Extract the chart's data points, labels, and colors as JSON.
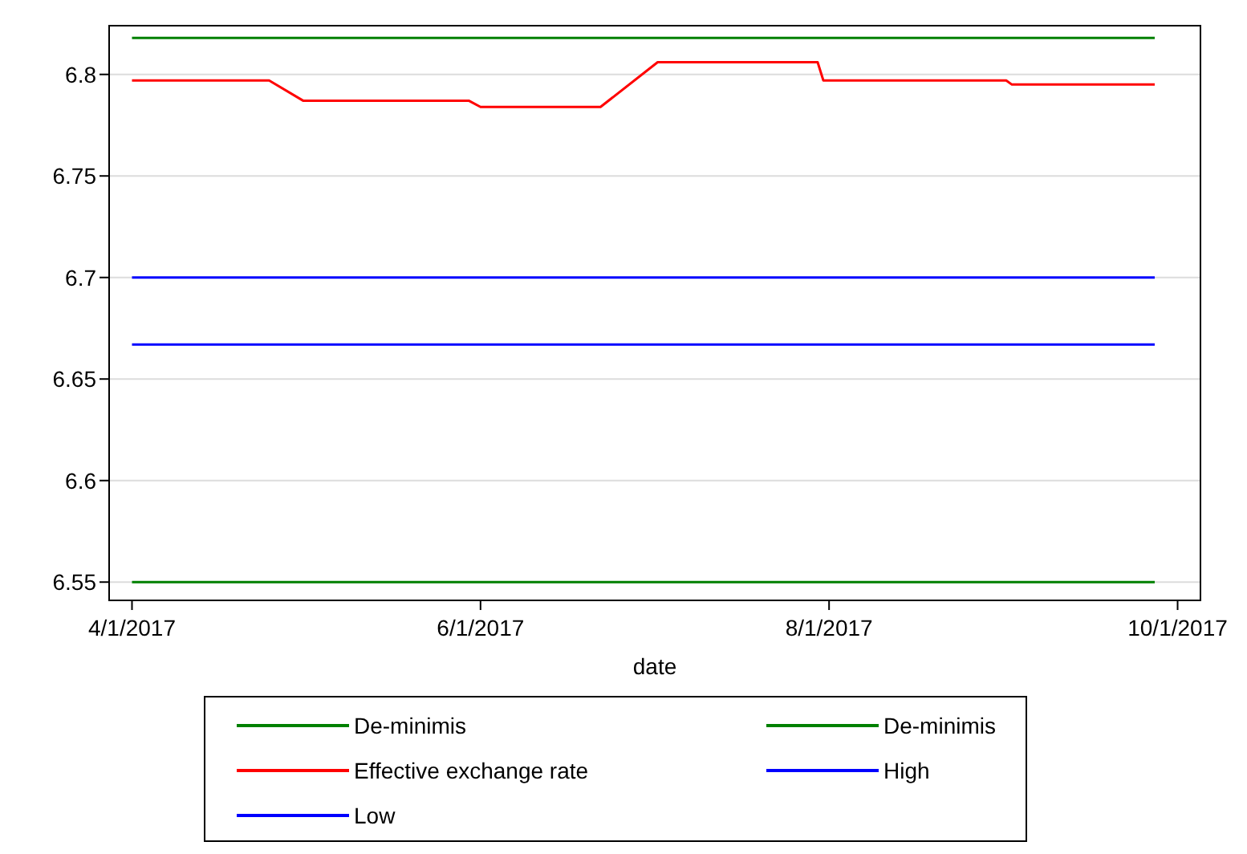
{
  "chart_data": {
    "type": "line",
    "xlabel": "date",
    "x": [
      "2017-04-01",
      "2017-09-27"
    ],
    "xlim": [
      "2017-03-28",
      "2017-10-05"
    ],
    "xticks": [
      {
        "value": "2017-04-01",
        "label": "4/1/2017"
      },
      {
        "value": "2017-06-01",
        "label": "6/1/2017"
      },
      {
        "value": "2017-08-01",
        "label": "8/1/2017"
      },
      {
        "value": "2017-10-01",
        "label": "10/1/2017"
      }
    ],
    "ylim": [
      6.541,
      6.824
    ],
    "yticks": [
      6.55,
      6.6,
      6.65,
      6.7,
      6.75,
      6.8
    ],
    "grid": "y",
    "legend": "bottom",
    "line_style": "solid",
    "marker": "none",
    "series": [
      {
        "name": "De-minimis",
        "color": "#008000",
        "values": [
          6.818,
          6.818
        ]
      },
      {
        "name": "De-minimis",
        "color": "#008000",
        "values": [
          6.55,
          6.55
        ]
      },
      {
        "name": "Effective exchange rate",
        "color": "#ff0000",
        "x": [
          "2017-04-01",
          "2017-04-25",
          "2017-05-01",
          "2017-05-30",
          "2017-06-01",
          "2017-06-22",
          "2017-07-02",
          "2017-07-30",
          "2017-07-31",
          "2017-09-01",
          "2017-09-02",
          "2017-09-27"
        ],
        "values": [
          6.797,
          6.797,
          6.787,
          6.787,
          6.784,
          6.784,
          6.806,
          6.806,
          6.797,
          6.797,
          6.795,
          6.795
        ]
      },
      {
        "name": "High",
        "color": "#0000ff",
        "values": [
          6.7,
          6.7
        ]
      },
      {
        "name": "Low",
        "color": "#0000ff",
        "values": [
          6.667,
          6.667
        ]
      }
    ]
  }
}
